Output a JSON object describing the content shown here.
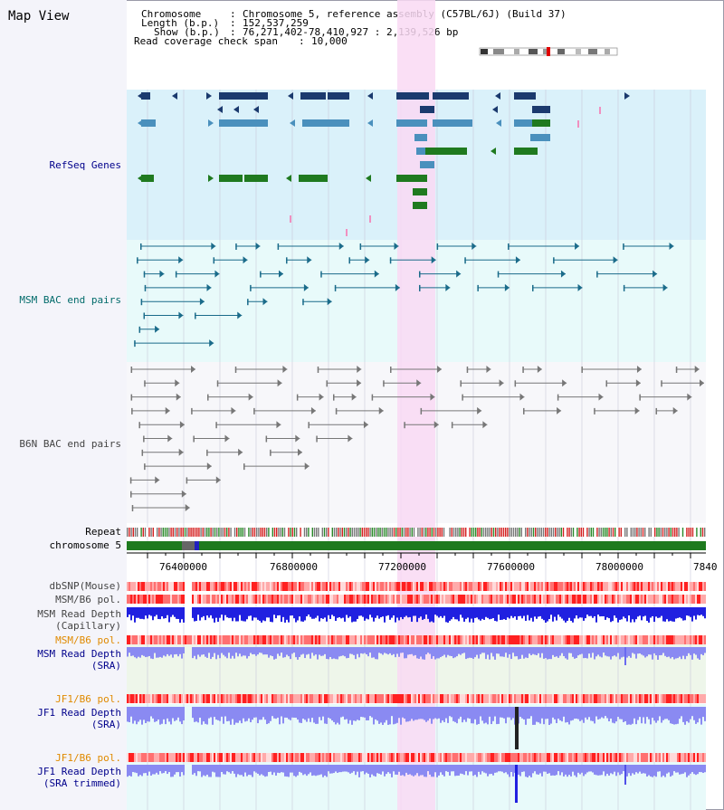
{
  "panel": {
    "title": "Map View"
  },
  "info": {
    "chromosome_label": "Chromosome",
    "chromosome_value": "Chromosome 5, reference assembly (C57BL/6J) (Build 37)",
    "length_label": "Length (b.p.)",
    "length_value": "152,537,259",
    "show_label": "Show (b.p.)",
    "show_value": "76,271,402-78,410,927 : 2,139,526 bp",
    "coverage_label": "Read coverage check span",
    "coverage_value": "10,000"
  },
  "tracks": {
    "refseq": "RefSeq Genes",
    "msm_bac": "MSM BAC end pairs",
    "b6n_bac": "B6N BAC end pairs",
    "repeat": "Repeat",
    "chromosome": "chromosome 5",
    "dbsnp": "dbSNP(Mouse)",
    "msm_b6_pol": "MSM/B6 pol.",
    "msm_depth_cap_1": "MSM Read Depth",
    "msm_depth_cap_2": "(Capillary)",
    "msm_b6_pol2": "MSM/B6 pol.",
    "msm_depth_sra_1": "MSM Read Depth",
    "msm_depth_sra_2": "(SRA)",
    "jf1_b6_pol": "JF1/B6 pol.",
    "jf1_depth_sra_1": "JF1 Read Depth",
    "jf1_depth_sra_2": "(SRA)",
    "jf1_b6_pol2": "JF1/B6 pol.",
    "jf1_depth_trim_1": "JF1 Read Depth",
    "jf1_depth_trim_2": "(SRA trimmed)"
  },
  "axis": {
    "ticks": [
      "76400000",
      "76800000",
      "77200000",
      "77600000",
      "78000000",
      "7840"
    ]
  },
  "colors": {
    "refseq_bg": "#daf1fa",
    "bac_bg": "#e8fafa",
    "b6n_bg": "#f7f7fa",
    "highlight": "#f9d9f3",
    "gene_dark": "#1b3a6e",
    "gene_mid": "#4a90bd",
    "gene_green": "#1f7a1f",
    "bac_msm": "#1a6b8a",
    "bac_b6n": "#777777",
    "chrom": "#1e7a1e",
    "depth_blue": "#2020e0",
    "depth_lite": "#8a8af2",
    "label_dark_blue": "#00008b",
    "label_teal": "#006a6a",
    "label_orange": "#e08a00"
  }
}
